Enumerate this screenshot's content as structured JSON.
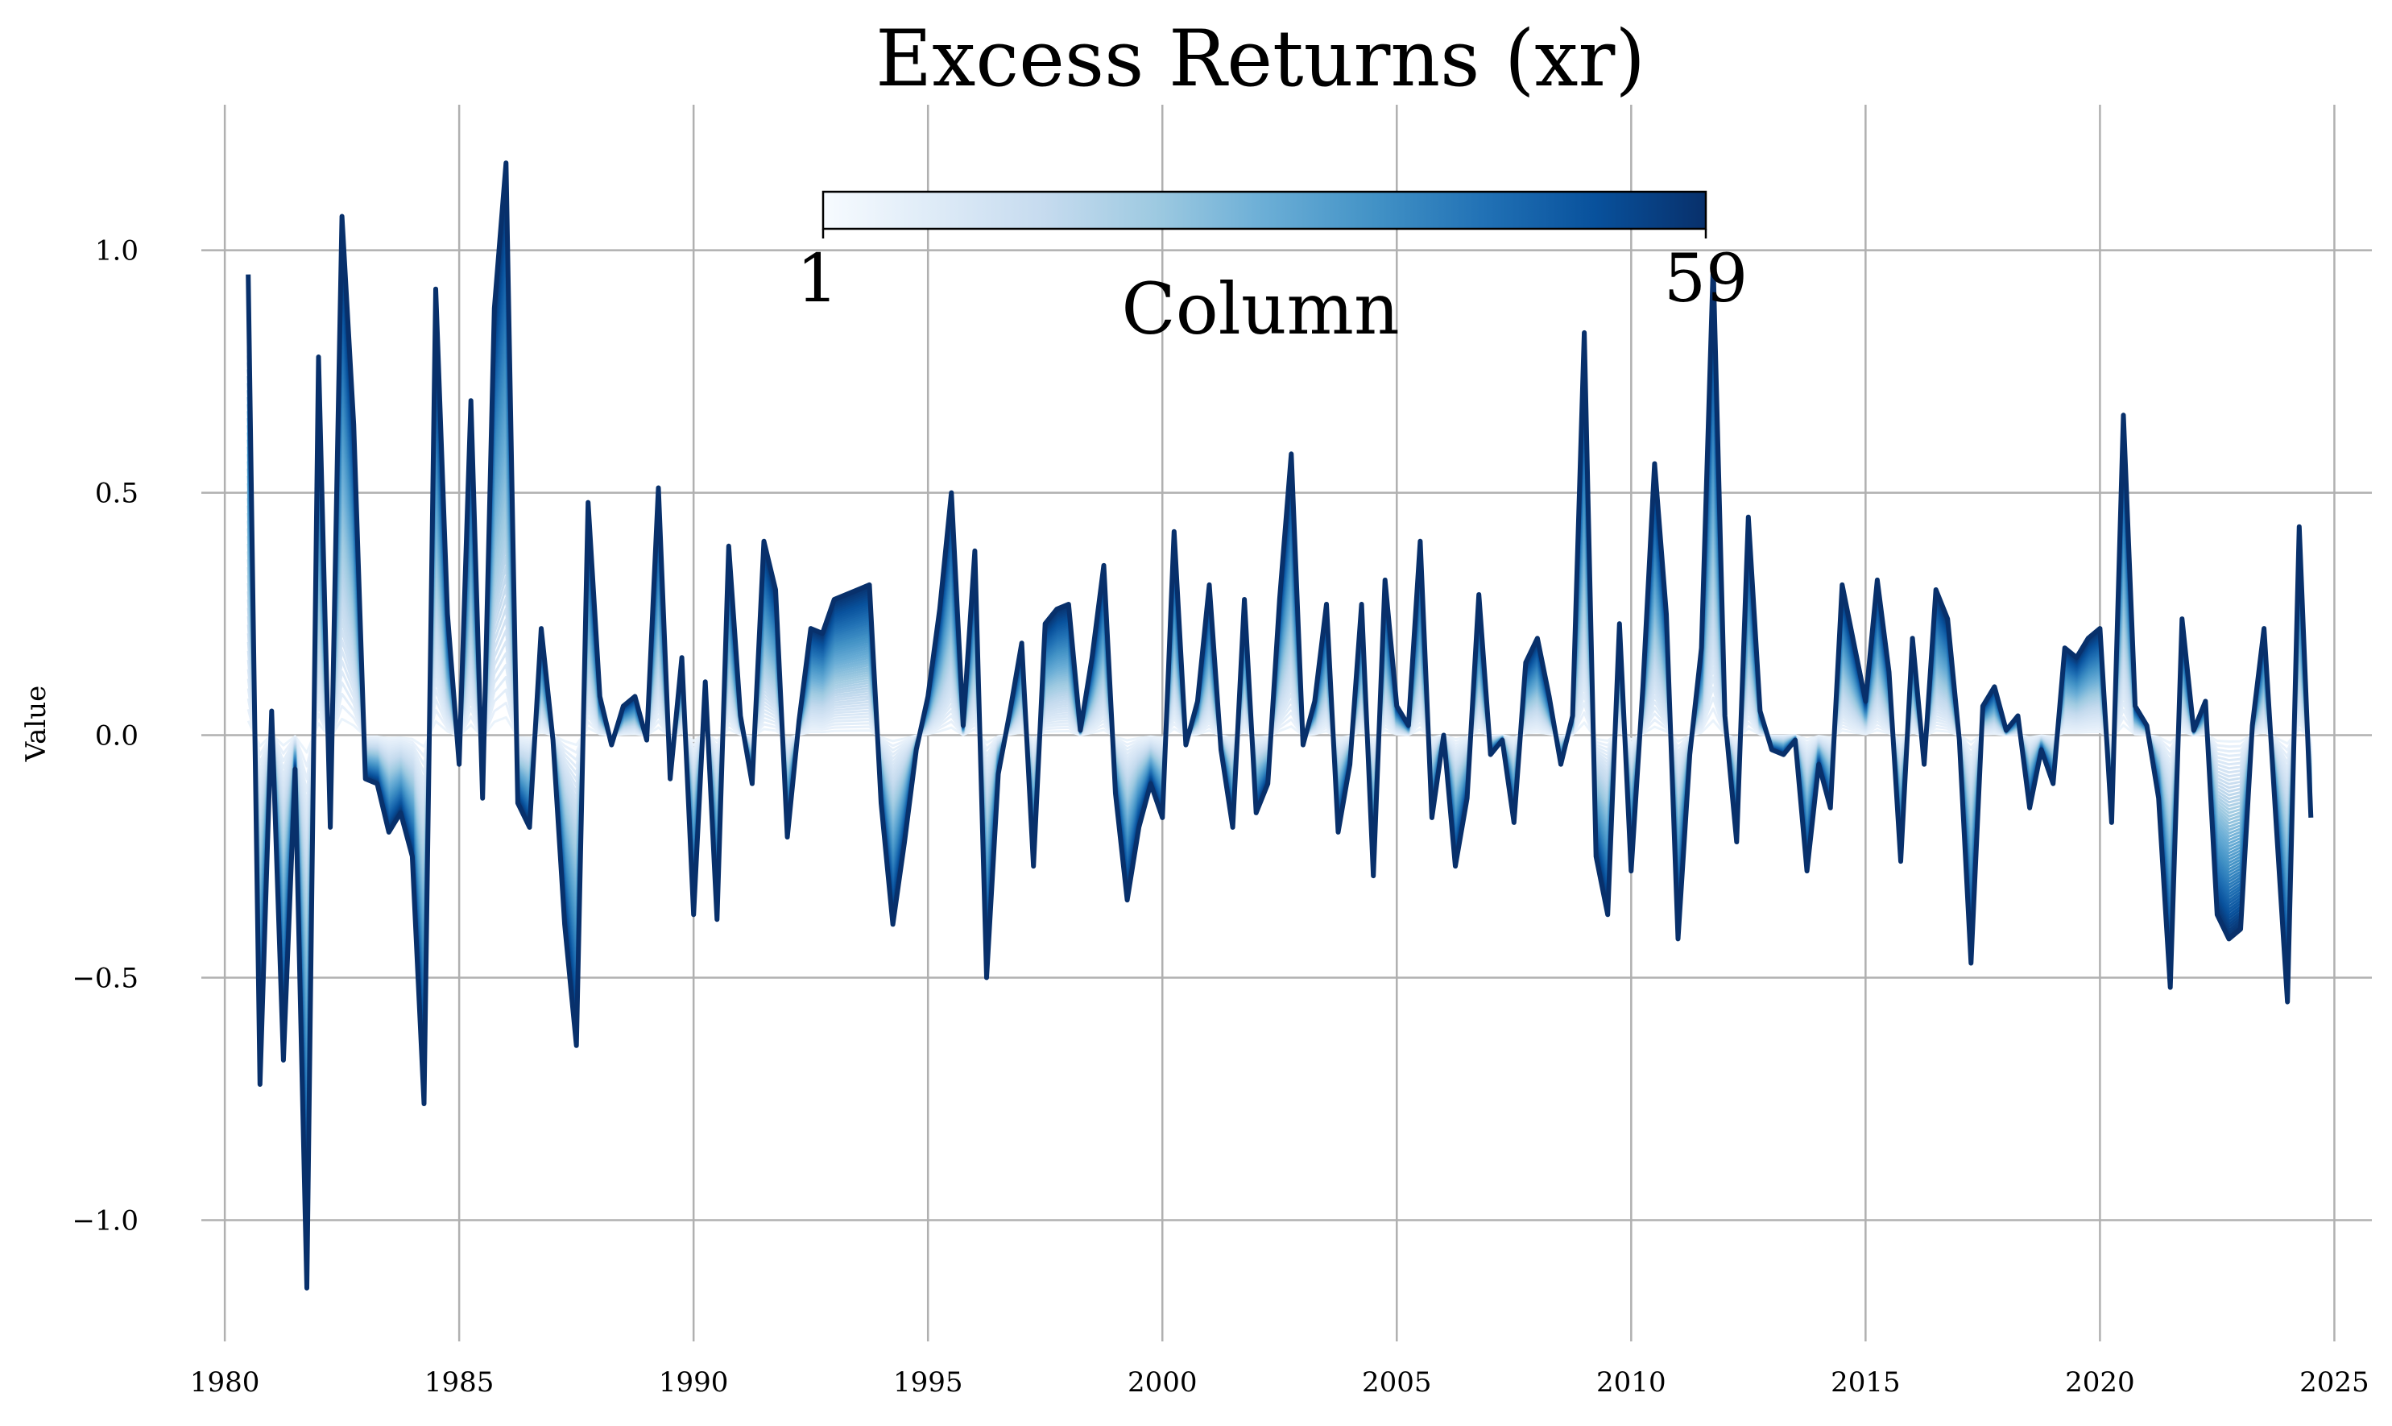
{
  "chart_data": {
    "type": "line",
    "title": "Excess Returns (xr)",
    "xlabel": "",
    "ylabel": "Value",
    "xlim": [
      1979.5,
      2025.8
    ],
    "ylim": [
      -1.25,
      1.3
    ],
    "xticks": [
      "1980",
      "1985",
      "1990",
      "1995",
      "2000",
      "2005",
      "2010",
      "2015",
      "2020",
      "2025"
    ],
    "yticks": [
      "1.0",
      "0.5",
      "0.0",
      "−0.5",
      "−1.0"
    ],
    "grid": true,
    "n_series": 59,
    "colorbar": {
      "label": "Column",
      "min_label": "1",
      "max_label": "59",
      "colormap": "Blues",
      "placement": "top-center"
    },
    "dates": [
      1980.5,
      1980.75,
      1981.0,
      1981.25,
      1981.5,
      1981.75,
      1982.0,
      1982.25,
      1982.5,
      1982.75,
      1983.0,
      1983.25,
      1983.5,
      1983.75,
      1984.0,
      1984.25,
      1984.5,
      1984.75,
      1985.0,
      1985.25,
      1985.5,
      1985.75,
      1986.0,
      1986.25,
      1986.5,
      1986.75,
      1987.0,
      1987.25,
      1987.5,
      1987.75,
      1988.0,
      1988.25,
      1988.5,
      1988.75,
      1989.0,
      1989.25,
      1989.5,
      1989.75,
      1990.0,
      1990.25,
      1990.5,
      1990.75,
      1991.0,
      1991.25,
      1991.5,
      1991.75,
      1992.0,
      1992.25,
      1992.5,
      1992.75,
      1993.0,
      1993.25,
      1993.5,
      1993.75,
      1994.0,
      1994.25,
      1994.5,
      1994.75,
      1995.0,
      1995.25,
      1995.5,
      1995.75,
      1996.0,
      1996.25,
      1996.5,
      1996.75,
      1997.0,
      1997.25,
      1997.5,
      1997.75,
      1998.0,
      1998.25,
      1998.5,
      1998.75,
      1999.0,
      1999.25,
      1999.5,
      1999.75,
      2000.0,
      2000.25,
      2000.5,
      2000.75,
      2001.0,
      2001.25,
      2001.5,
      2001.75,
      2002.0,
      2002.25,
      2002.5,
      2002.75,
      2003.0,
      2003.25,
      2003.5,
      2003.75,
      2004.0,
      2004.25,
      2004.5,
      2004.75,
      2005.0,
      2005.25,
      2005.5,
      2005.75,
      2006.0,
      2006.25,
      2006.5,
      2006.75,
      2007.0,
      2007.25,
      2007.5,
      2007.75,
      2008.0,
      2008.25,
      2008.5,
      2008.75,
      2009.0,
      2009.25,
      2009.5,
      2009.75,
      2010.0,
      2010.25,
      2010.5,
      2010.75,
      2011.0,
      2011.25,
      2011.5,
      2011.75,
      2012.0,
      2012.25,
      2012.5,
      2012.75,
      2013.0,
      2013.25,
      2013.5,
      2013.75,
      2014.0,
      2014.25,
      2014.5,
      2014.75,
      2015.0,
      2015.25,
      2015.5,
      2015.75,
      2016.0,
      2016.25,
      2016.5,
      2016.75,
      2017.0,
      2017.25,
      2017.5,
      2017.75,
      2018.0,
      2018.25,
      2018.5,
      2018.75,
      2019.0,
      2019.25,
      2019.5,
      2019.75,
      2020.0,
      2020.25,
      2020.5,
      2020.75,
      2021.0,
      2021.25,
      2021.5,
      2021.75,
      2022.0,
      2022.25,
      2022.5,
      2022.75,
      2023.0,
      2023.25,
      2023.5,
      2023.75,
      2024.0,
      2024.25,
      2024.5
    ],
    "series_59": [
      0.95,
      -0.72,
      0.05,
      -0.67,
      -0.07,
      -1.14,
      0.78,
      -0.19,
      1.07,
      0.64,
      -0.09,
      -0.1,
      -0.2,
      -0.16,
      -0.25,
      -0.76,
      0.92,
      0.25,
      -0.06,
      0.69,
      -0.13,
      0.88,
      1.18,
      -0.14,
      -0.19,
      0.22,
      -0.01,
      -0.39,
      -0.64,
      0.48,
      0.08,
      -0.02,
      0.06,
      0.08,
      -0.01,
      0.51,
      -0.09,
      0.16,
      -0.37,
      0.11,
      -0.38,
      0.39,
      0.04,
      -0.1,
      0.4,
      0.3,
      -0.21,
      0.03,
      0.22,
      0.21,
      0.28,
      0.29,
      0.3,
      0.31,
      -0.14,
      -0.39,
      -0.22,
      -0.03,
      0.08,
      0.26,
      0.5,
      0.02,
      0.38,
      -0.5,
      -0.08,
      0.05,
      0.19,
      -0.27,
      0.23,
      0.26,
      0.27,
      0.01,
      0.16,
      0.35,
      -0.12,
      -0.34,
      -0.19,
      -0.1,
      -0.17,
      0.42,
      -0.02,
      0.07,
      0.31,
      -0.03,
      -0.19,
      0.28,
      -0.16,
      -0.1,
      0.28,
      0.58,
      -0.02,
      0.07,
      0.27,
      -0.2,
      -0.06,
      0.27,
      -0.29,
      0.32,
      0.06,
      0.02,
      0.4,
      -0.17,
      0.0,
      -0.27,
      -0.13,
      0.29,
      -0.04,
      -0.01,
      -0.18,
      0.15,
      0.2,
      0.08,
      -0.06,
      0.04,
      0.83,
      -0.25,
      -0.37,
      0.23,
      -0.28,
      0.1,
      0.56,
      0.25,
      -0.42,
      -0.04,
      0.18,
      0.97,
      0.04,
      -0.22,
      0.45,
      0.05,
      -0.03,
      -0.04,
      -0.01,
      -0.28,
      -0.06,
      -0.15,
      0.31,
      0.19,
      0.07,
      0.32,
      0.13,
      -0.26,
      0.2,
      -0.06,
      0.3,
      0.24,
      -0.01,
      -0.47,
      0.06,
      0.1,
      0.01,
      0.04,
      -0.15,
      -0.03,
      -0.1,
      0.18,
      0.16,
      0.2,
      0.22,
      -0.18,
      0.66,
      0.06,
      0.02,
      -0.13,
      -0.52,
      0.24,
      0.01,
      0.07,
      -0.37,
      -0.42,
      -0.4,
      0.02,
      0.22,
      -0.17,
      -0.55,
      0.43,
      -0.17,
      -0.19
    ]
  }
}
